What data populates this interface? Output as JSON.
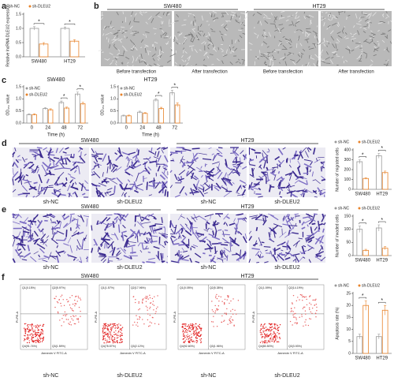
{
  "panel_labels": [
    "a",
    "b",
    "c",
    "d",
    "e",
    "f"
  ],
  "panel_b": {
    "groups": [
      "SW480",
      "HT29"
    ],
    "captions": [
      "Before transfection",
      "After transfection",
      "Before transfection",
      "After transfection"
    ]
  },
  "panel_d": {
    "groups": [
      "SW480",
      "HT29"
    ],
    "captions": [
      "sh-NC",
      "sh-DLEU2",
      "sh-NC",
      "sh-DLEU2"
    ]
  },
  "panel_e": {
    "groups": [
      "SW480",
      "HT29"
    ],
    "captions": [
      "sh-NC",
      "sh-DLEU2",
      "sh-NC",
      "sh-DLEU2"
    ]
  },
  "panel_f": {
    "groups": [
      "SW480",
      "HT29"
    ],
    "captions": [
      "sh-NC",
      "sh-DLEU2",
      "sh-NC",
      "sh-DLEU2"
    ],
    "x_label": "Annexin V FITC-A",
    "y_label": "PI-PE-A",
    "quadrants": [
      [
        "Q1(0.15%)",
        "Q2(5.97%)",
        "Q4(91.74%)",
        "Q3(1.59%)"
      ],
      [
        "Q1(1.57%)",
        "Q2(17.96%)",
        "Q4(78.57%)",
        "Q3(2.12%)"
      ],
      [
        "Q1(0.05%)",
        "Q2(5.38%)",
        "Q4(92.60%)",
        "Q3(1.96%)"
      ],
      [
        "Q1(1.59%)",
        "Q2(14.19%)",
        "Q4(80.50%)",
        "Q3(3.93%)"
      ]
    ]
  },
  "chart_data": [
    {
      "type": "bar",
      "y_label": "Relative lncRNA DLEU2 expression",
      "legend": "top",
      "categories": [
        "SW480",
        "HT29"
      ],
      "series": [
        {
          "name": "sh-NC",
          "color": "#999999",
          "values": [
            1.0,
            1.0
          ],
          "errors": [
            0.06,
            0.05
          ]
        },
        {
          "name": "sh-DLEU2",
          "color": "#e8832a",
          "values": [
            0.45,
            0.55
          ],
          "errors": [
            0.05,
            0.05
          ]
        }
      ],
      "annotations": [
        "*",
        "*"
      ],
      "ylim": [
        0,
        1.5
      ],
      "yticks": [
        {
          "value": 0,
          "label": "0.0"
        },
        0.5,
        {
          "value": 1,
          "label": "1.0"
        },
        1.5
      ]
    },
    {
      "type": "bar",
      "title": "SW480",
      "y_label": "OD₄₅₀ value",
      "x_label": "Time (h)",
      "legend": "upper left",
      "categories": [
        "0",
        "24",
        "48",
        "72"
      ],
      "series": [
        {
          "name": "sh-NC",
          "color": "#999999",
          "values": [
            0.35,
            0.6,
            0.85,
            1.2
          ],
          "errors": [
            0.03,
            0.04,
            0.06,
            0.08
          ]
        },
        {
          "name": "sh-DLEU2",
          "color": "#e8832a",
          "values": [
            0.35,
            0.55,
            0.62,
            0.8
          ],
          "errors": [
            0.03,
            0.04,
            0.04,
            0.06
          ]
        }
      ],
      "annotations": [
        null,
        null,
        "*",
        "*"
      ],
      "ylim": [
        0,
        1.5
      ],
      "yticks": [
        {
          "value": 0,
          "label": "0.0"
        },
        0.5,
        {
          "value": 1,
          "label": "1.0"
        },
        1.5
      ]
    },
    {
      "type": "bar",
      "title": "HT29",
      "y_label": "OD₄₅₀ value",
      "x_label": "Time (h)",
      "legend": "upper left",
      "categories": [
        "0",
        "24",
        "48",
        "72"
      ],
      "series": [
        {
          "name": "sh-NC",
          "color": "#999999",
          "values": [
            0.3,
            0.45,
            0.95,
            1.25
          ],
          "errors": [
            0.03,
            0.04,
            0.06,
            0.1
          ]
        },
        {
          "name": "sh-DLEU2",
          "color": "#e8832a",
          "values": [
            0.3,
            0.4,
            0.6,
            0.75
          ],
          "errors": [
            0.03,
            0.03,
            0.05,
            0.08
          ]
        }
      ],
      "annotations": [
        null,
        null,
        "*",
        "*"
      ],
      "ylim": [
        0,
        1.5
      ],
      "yticks": [
        {
          "value": 0,
          "label": "0.0"
        },
        0.5,
        {
          "value": 1,
          "label": "1.0"
        },
        1.5
      ]
    },
    {
      "type": "bar",
      "y_label": "Number of migrated cells",
      "legend": "top",
      "categories": [
        "SW480",
        "HT29"
      ],
      "series": [
        {
          "name": "sh-NC",
          "color": "#999999",
          "values": [
            280,
            340
          ],
          "errors": [
            20,
            25
          ]
        },
        {
          "name": "sh-DLEU2",
          "color": "#e8832a",
          "values": [
            110,
            170
          ],
          "errors": [
            8,
            15
          ]
        }
      ],
      "annotations": [
        "*",
        "*"
      ],
      "ylim": [
        0,
        400
      ],
      "yticks": [
        0,
        100,
        200,
        300,
        400
      ]
    },
    {
      "type": "bar",
      "y_label": "Number of invaded cells",
      "legend": "top",
      "categories": [
        "SW480",
        "HT29"
      ],
      "series": [
        {
          "name": "sh-NC",
          "color": "#999999",
          "values": [
            100,
            105
          ],
          "errors": [
            12,
            12
          ]
        },
        {
          "name": "sh-DLEU2",
          "color": "#e8832a",
          "values": [
            20,
            28
          ],
          "errors": [
            4,
            6
          ]
        }
      ],
      "annotations": [
        "*",
        "*"
      ],
      "ylim": [
        0,
        150
      ],
      "yticks": [
        0,
        50,
        100,
        150
      ]
    },
    {
      "type": "bar",
      "y_label": "Apoptosis rate (%)",
      "legend": "top",
      "categories": [
        "SW480",
        "HT29"
      ],
      "series": [
        {
          "name": "sh-NC",
          "color": "#999999",
          "values": [
            7,
            7
          ],
          "errors": [
            1,
            1
          ]
        },
        {
          "name": "sh-DLEU2",
          "color": "#e8832a",
          "values": [
            20,
            18
          ],
          "errors": [
            2,
            2
          ]
        }
      ],
      "annotations": [
        "*",
        "*"
      ],
      "ylim": [
        0,
        25
      ],
      "yticks": [
        0,
        5,
        10,
        15,
        20,
        25
      ]
    }
  ]
}
